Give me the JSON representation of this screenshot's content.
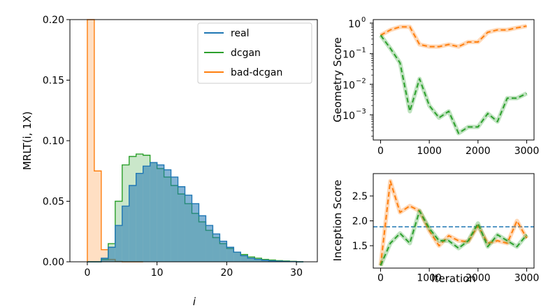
{
  "chart_data": [
    {
      "type": "histogram",
      "xlabel": "i",
      "ylabel": "MRLT(i, 1X)",
      "xlim": [
        -2.5,
        33
      ],
      "ylim": [
        0,
        0.2
      ],
      "xticks": [
        "0",
        "10",
        "20",
        "30"
      ],
      "yticks": [
        "0.00",
        "0.05",
        "0.10",
        "0.15",
        "0.20"
      ],
      "legend": {
        "position": "top-right",
        "entries": [
          "real",
          "dcgan",
          "bad-dcgan"
        ]
      },
      "colors": {
        "real": "#1f77b4",
        "dcgan": "#2ca02c",
        "bad-dcgan": "#ff7f0e"
      },
      "bin_start": 0,
      "bin_width": 1,
      "series": [
        {
          "name": "real",
          "values": [
            0,
            0,
            0.003,
            0.012,
            0.03,
            0.046,
            0.063,
            0.073,
            0.079,
            0.082,
            0.08,
            0.076,
            0.07,
            0.062,
            0.055,
            0.048,
            0.038,
            0.03,
            0.023,
            0.017,
            0.012,
            0.008,
            0.005,
            0.003,
            0.002,
            0.0013,
            0.0008,
            0.0005,
            0.0003,
            0.0002,
            0
          ]
        },
        {
          "name": "dcgan",
          "values": [
            0,
            0,
            0.002,
            0.015,
            0.05,
            0.08,
            0.087,
            0.089,
            0.088,
            0.082,
            0.077,
            0.07,
            0.063,
            0.056,
            0.048,
            0.04,
            0.033,
            0.026,
            0.02,
            0.015,
            0.011,
            0.008,
            0.006,
            0.004,
            0.003,
            0.002,
            0.0015,
            0.001,
            0.0007,
            0.0004,
            0
          ]
        },
        {
          "name": "bad-dcgan",
          "values": [
            0.2,
            0.075,
            0.01,
            0.002,
            0.0003,
            0,
            0,
            0
          ]
        }
      ]
    },
    {
      "type": "line",
      "xlabel": "",
      "ylabel": "Geometry Score",
      "yscale": "log",
      "xlim": [
        -150,
        3150
      ],
      "ylim": [
        0.00015,
        1.3
      ],
      "xticks": [
        "0",
        "1000",
        "2000",
        "3000"
      ],
      "yticks": [
        {
          "base": "10",
          "exp": "0"
        },
        {
          "base": "10",
          "exp": "−1"
        },
        {
          "base": "10",
          "exp": "−2"
        },
        {
          "base": "10",
          "exp": "−3"
        }
      ],
      "series": [
        {
          "color": "#ff7f0e",
          "x": [
            0,
            200,
            400,
            600,
            800,
            1000,
            1200,
            1400,
            1600,
            1800,
            2000,
            2200,
            2400,
            2600,
            2800,
            3000
          ],
          "y": [
            0.4,
            0.6,
            0.75,
            0.75,
            0.2,
            0.17,
            0.17,
            0.2,
            0.17,
            0.24,
            0.24,
            0.5,
            0.6,
            0.6,
            0.7,
            0.8
          ]
        },
        {
          "color": "#2ca02c",
          "x": [
            0,
            200,
            400,
            600,
            800,
            1000,
            1200,
            1400,
            1600,
            1800,
            2000,
            2200,
            2400,
            2600,
            2800,
            3000
          ],
          "y": [
            0.4,
            0.15,
            0.05,
            0.0013,
            0.015,
            0.002,
            0.0008,
            0.0013,
            0.00025,
            0.0004,
            0.0004,
            0.0011,
            0.0006,
            0.0035,
            0.0035,
            0.005
          ]
        }
      ]
    },
    {
      "type": "line",
      "xlabel": "Iteration",
      "ylabel": "Inception Score",
      "xlim": [
        -150,
        3150
      ],
      "ylim": [
        1.05,
        2.95
      ],
      "xticks": [
        "0",
        "1000",
        "2000",
        "3000"
      ],
      "yticks": [
        "1.5",
        "2.0",
        "2.5"
      ],
      "reference_line": 1.88,
      "series": [
        {
          "color": "#ff7f0e",
          "x": [
            0,
            200,
            400,
            600,
            800,
            1000,
            1200,
            1400,
            1600,
            1800,
            2000,
            2200,
            2400,
            2600,
            2800,
            3000
          ],
          "y": [
            1.1,
            2.8,
            2.17,
            2.3,
            2.2,
            1.8,
            1.5,
            1.7,
            1.6,
            1.58,
            1.9,
            1.55,
            1.6,
            1.55,
            2.0,
            1.65
          ]
        },
        {
          "color": "#2ca02c",
          "x": [
            0,
            200,
            400,
            600,
            800,
            1000,
            1200,
            1400,
            1600,
            1800,
            2000,
            2200,
            2400,
            2600,
            2800,
            3000
          ],
          "y": [
            1.1,
            1.55,
            1.75,
            1.55,
            2.2,
            1.85,
            1.6,
            1.6,
            1.45,
            1.6,
            1.95,
            1.48,
            1.72,
            1.6,
            1.48,
            1.72
          ]
        }
      ]
    }
  ]
}
